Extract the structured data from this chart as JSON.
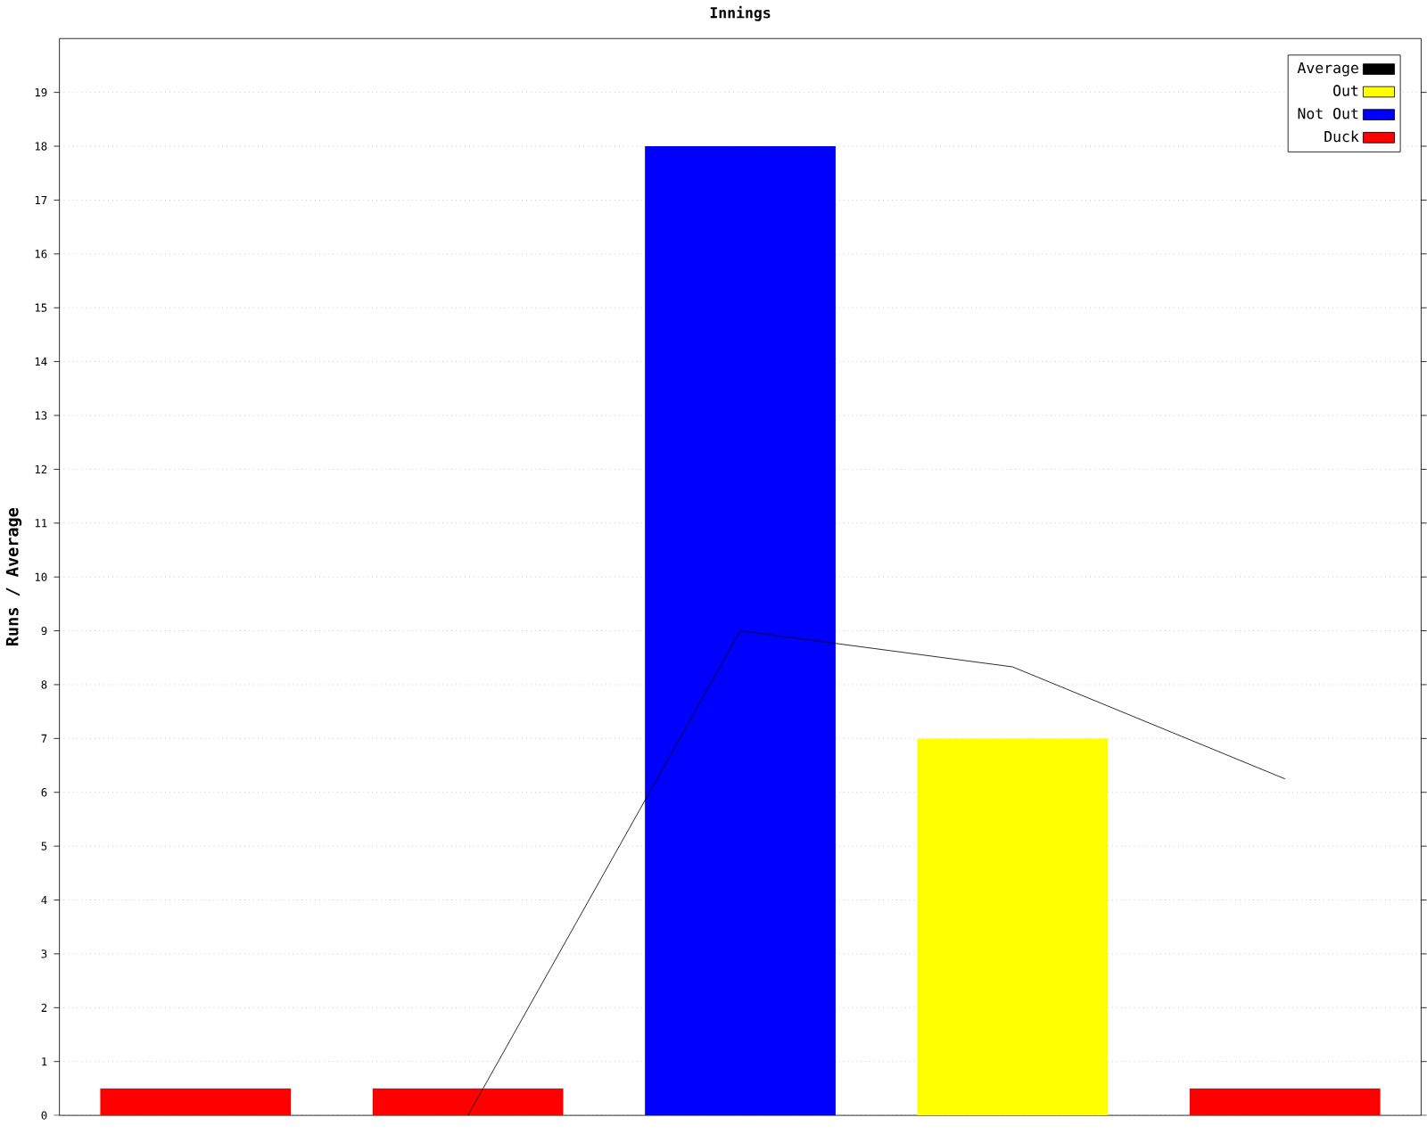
{
  "chart_data": {
    "type": "bar",
    "title": "Innings",
    "ylabel": "Runs / Average",
    "categories": [
      null,
      null,
      null,
      null,
      null
    ],
    "series": [
      {
        "name": "Average",
        "type": "line",
        "color": "#000000",
        "values": [
          null,
          0,
          9,
          8.33,
          6.25
        ]
      },
      {
        "name": "Out",
        "color": "#ffff00",
        "values": [
          null,
          null,
          null,
          7,
          null
        ]
      },
      {
        "name": "Not Out",
        "color": "#0000ff",
        "values": [
          null,
          null,
          18,
          null,
          null
        ]
      },
      {
        "name": "Duck",
        "color": "#ff0000",
        "values": [
          0.5,
          0.5,
          null,
          null,
          0.5
        ]
      }
    ],
    "ylim": [
      0,
      20
    ],
    "yticks": [
      0,
      1,
      2,
      3,
      4,
      5,
      6,
      7,
      8,
      9,
      10,
      11,
      12,
      13,
      14,
      15,
      16,
      17,
      18,
      19
    ],
    "grid": "y",
    "legend": "top right",
    "marker": "none"
  }
}
